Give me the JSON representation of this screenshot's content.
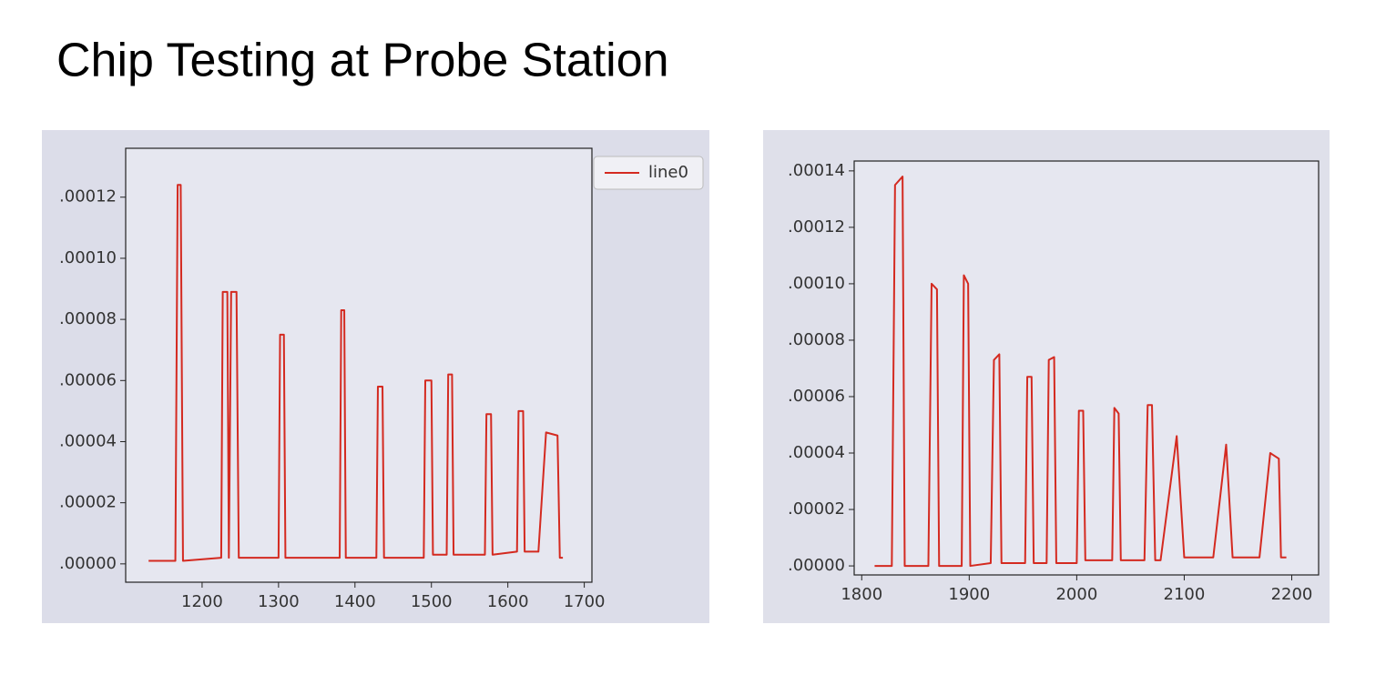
{
  "title": "Chip Testing at Probe Station",
  "chart_data": [
    {
      "type": "line",
      "x": [
        1130,
        1165,
        1168,
        1172,
        1175,
        1225,
        1227,
        1233,
        1235,
        1238,
        1245,
        1248,
        1300,
        1302,
        1307,
        1309,
        1380,
        1382,
        1386,
        1388,
        1428,
        1430,
        1436,
        1438,
        1490,
        1492,
        1500,
        1502,
        1520,
        1522,
        1527,
        1529,
        1570,
        1572,
        1578,
        1580,
        1612,
        1614,
        1620,
        1622,
        1640,
        1650,
        1665,
        1668,
        1672
      ],
      "series": [
        {
          "name": "line0",
          "color": "#d42a20",
          "values": [
            1e-06,
            1e-06,
            0.000124,
            0.000124,
            1e-06,
            2e-06,
            8.9e-05,
            8.9e-05,
            2e-06,
            8.9e-05,
            8.9e-05,
            2e-06,
            2e-06,
            7.5e-05,
            7.5e-05,
            2e-06,
            2e-06,
            8.3e-05,
            8.3e-05,
            2e-06,
            2e-06,
            5.8e-05,
            5.8e-05,
            2e-06,
            2e-06,
            6e-05,
            6e-05,
            3e-06,
            3e-06,
            6.2e-05,
            6.2e-05,
            3e-06,
            3e-06,
            4.9e-05,
            4.9e-05,
            3e-06,
            4e-06,
            5e-05,
            5e-05,
            4e-06,
            4e-06,
            4.3e-05,
            4.2e-05,
            2e-06,
            2e-06
          ]
        }
      ],
      "xlim": [
        1100,
        1710
      ],
      "xticks": [
        1200,
        1300,
        1400,
        1500,
        1600,
        1700
      ],
      "ylim": [
        -6e-06,
        0.000136
      ],
      "yticks": [
        {
          "value": 0,
          "label": ".00000"
        },
        {
          "value": 2e-05,
          "label": ".00002"
        },
        {
          "value": 4e-05,
          "label": ".00004"
        },
        {
          "value": 6e-05,
          "label": ".00006"
        },
        {
          "value": 8e-05,
          "label": ".00008"
        },
        {
          "value": 0.0001,
          "label": ".00010"
        },
        {
          "value": 0.00012,
          "label": ".00012"
        }
      ],
      "legend": "upper right"
    },
    {
      "type": "line",
      "x": [
        1812,
        1828,
        1831,
        1838,
        1840,
        1862,
        1865,
        1870,
        1872,
        1893,
        1895,
        1899,
        1901,
        1920,
        1923,
        1928,
        1930,
        1952,
        1954,
        1958,
        1960,
        1972,
        1974,
        1979,
        1981,
        2000,
        2002,
        2006,
        2008,
        2033,
        2035,
        2039,
        2041,
        2063,
        2066,
        2070,
        2073,
        2078,
        2093,
        2100,
        2127,
        2139,
        2145,
        2170,
        2180,
        2188,
        2190,
        2195
      ],
      "series": [
        {
          "color": "#d42a20",
          "values": [
            0,
            0,
            0.000135,
            0.000138,
            0,
            0,
            0.0001,
            9.8e-05,
            0,
            0,
            0.000103,
            0.0001,
            0,
            1e-06,
            7.3e-05,
            7.5e-05,
            1e-06,
            1e-06,
            6.7e-05,
            6.7e-05,
            1e-06,
            1e-06,
            7.3e-05,
            7.4e-05,
            1e-06,
            1e-06,
            5.5e-05,
            5.5e-05,
            2e-06,
            2e-06,
            5.6e-05,
            5.4e-05,
            2e-06,
            2e-06,
            5.7e-05,
            5.7e-05,
            2e-06,
            2e-06,
            4.6e-05,
            3e-06,
            3e-06,
            4.3e-05,
            3e-06,
            3e-06,
            4e-05,
            3.8e-05,
            3e-06,
            3e-06
          ]
        }
      ],
      "xlim": [
        1793,
        2225
      ],
      "xticks": [
        1800,
        1900,
        2000,
        2100,
        2200
      ],
      "ylim": [
        -3.2e-06,
        0.0001435
      ],
      "yticks": [
        {
          "value": 0,
          "label": ".00000"
        },
        {
          "value": 2e-05,
          "label": ".00002"
        },
        {
          "value": 4e-05,
          "label": ".00004"
        },
        {
          "value": 6e-05,
          "label": ".00006"
        },
        {
          "value": 8e-05,
          "label": ".00008"
        },
        {
          "value": 0.0001,
          "label": ".00010"
        },
        {
          "value": 0.00012,
          "label": ".00012"
        },
        {
          "value": 0.00014,
          "label": ".00014"
        }
      ]
    }
  ]
}
